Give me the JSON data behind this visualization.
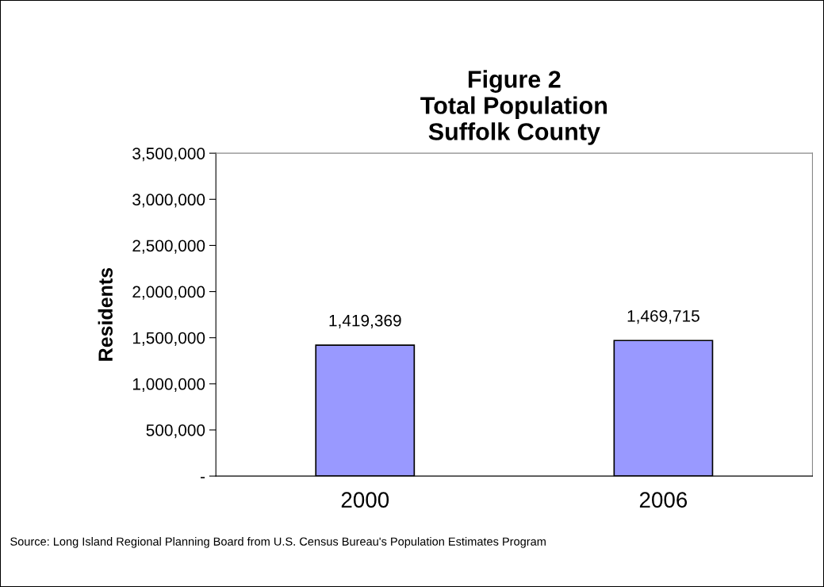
{
  "chart_data": {
    "type": "bar",
    "title": "Figure 2\nTotal Population\nSuffolk County",
    "ylabel": "Residents",
    "categories": [
      "2000",
      "2006"
    ],
    "values": [
      1419369,
      1469715
    ],
    "color": "#9999ff",
    "value_labels": [
      "1,419,369",
      "1,469,715"
    ],
    "ylim": [
      0,
      3500000
    ],
    "yticks": [
      {
        "value": 0,
        "label": "-"
      },
      {
        "value": 500000,
        "label": "500,000"
      },
      {
        "value": 1000000,
        "label": "1,000,000"
      },
      {
        "value": 1500000,
        "label": "1,500,000"
      },
      {
        "value": 2000000,
        "label": "2,000,000"
      },
      {
        "value": 2500000,
        "label": "2,500,000"
      },
      {
        "value": 3000000,
        "label": "3,000,000"
      },
      {
        "value": 3500000,
        "label": "3,500,000"
      }
    ],
    "grid": false,
    "legend": false,
    "annotations": [
      "Source: Long Island Regional Planning Board from U.S. Census Bureau's Population Estimates Program"
    ]
  }
}
